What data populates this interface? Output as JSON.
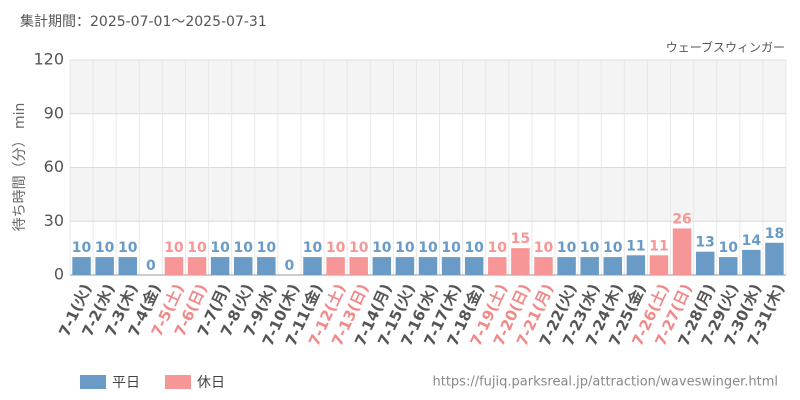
{
  "chart_data": {
    "type": "bar",
    "title": "集計期間：2025-07-01～2025-07-31",
    "subtitle": "ウェーブスウィンガー",
    "y_label": "待ち時間（分） min",
    "source": "https://fujiq.parksreal.jp/attraction/waveswinger.html",
    "categories": [
      "7-1(火)",
      "7-2(水)",
      "7-3(木)",
      "7-4(金)",
      "7-5(土)",
      "7-6(日)",
      "7-7(月)",
      "7-8(火)",
      "7-9(水)",
      "7-10(木)",
      "7-11(金)",
      "7-12(土)",
      "7-13(日)",
      "7-14(月)",
      "7-15(火)",
      "7-16(水)",
      "7-17(木)",
      "7-18(金)",
      "7-19(土)",
      "7-20(日)",
      "7-21(月)",
      "7-22(火)",
      "7-23(水)",
      "7-24(木)",
      "7-25(金)",
      "7-26(土)",
      "7-27(日)",
      "7-28(月)",
      "7-29(火)",
      "7-30(水)",
      "7-31(木)"
    ],
    "series": [
      {
        "name": "平日",
        "color": "#6a9bc6",
        "values": [
          10,
          10,
          10,
          0,
          null,
          null,
          10,
          10,
          10,
          0,
          10,
          null,
          null,
          10,
          10,
          10,
          10,
          10,
          null,
          null,
          null,
          10,
          10,
          10,
          11,
          null,
          null,
          13,
          10,
          14,
          18
        ]
      },
      {
        "name": "休日",
        "color": "#f79696",
        "values": [
          null,
          null,
          null,
          null,
          10,
          10,
          null,
          null,
          null,
          null,
          null,
          10,
          10,
          null,
          null,
          null,
          null,
          null,
          10,
          15,
          10,
          null,
          null,
          null,
          null,
          11,
          26,
          null,
          null,
          null,
          null
        ]
      }
    ],
    "ylim": [
      0,
      120
    ],
    "yticks": [
      0,
      30,
      60,
      90,
      120
    ],
    "grid": true
  }
}
